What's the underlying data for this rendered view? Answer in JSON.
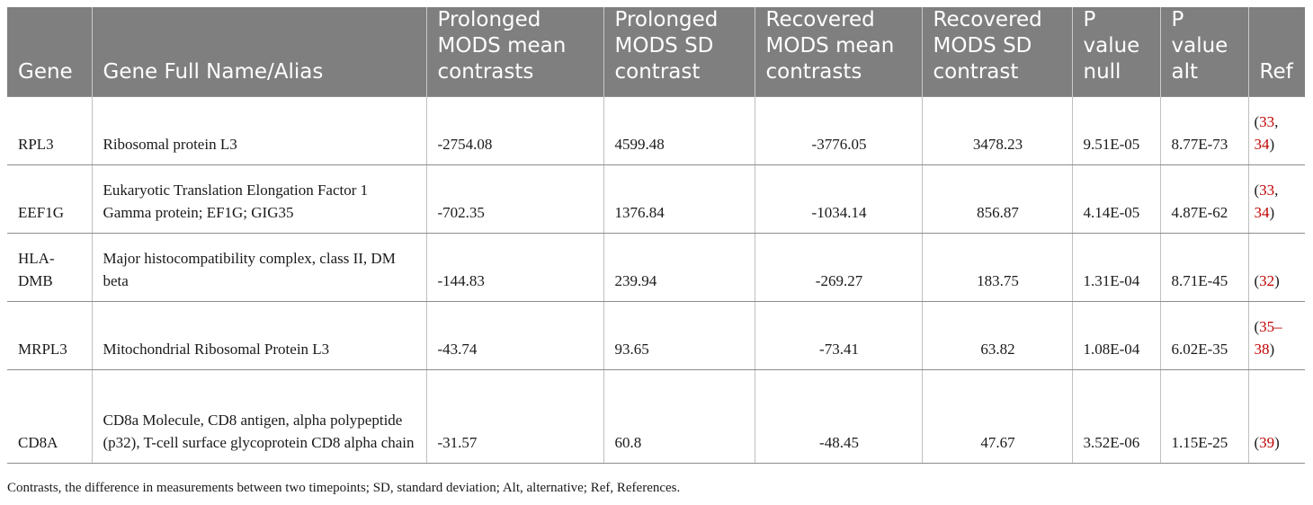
{
  "table": {
    "headers": [
      "Gene",
      "Gene Full Name/Alias",
      "Prolonged MODS mean contrasts",
      "Prolonged MODS SD contrast",
      "Recovered MODS mean contrasts",
      "Recovered MODS SD contrast",
      "P value null",
      "P value alt",
      "Ref"
    ],
    "rows": [
      {
        "gene": "RPL3",
        "name": "Ribosomal protein L3",
        "prolonged_mean": "-2754.08",
        "prolonged_sd": "4599.48",
        "recovered_mean": "-3776.05",
        "recovered_sd": "3478.23",
        "p_null": "9.51E-05",
        "p_alt": "8.77E-73",
        "ref_open": "(",
        "ref_a": "33",
        "ref_sep": ", ",
        "ref_b": "34",
        "ref_close": ")"
      },
      {
        "gene": "EEF1G",
        "name": "Eukaryotic Translation Elongation Factor 1 Gamma protein; EF1G; GIG35",
        "prolonged_mean": "-702.35",
        "prolonged_sd": "1376.84",
        "recovered_mean": "-1034.14",
        "recovered_sd": "856.87",
        "p_null": "4.14E-05",
        "p_alt": "4.87E-62",
        "ref_open": "(",
        "ref_a": "33",
        "ref_sep": ", ",
        "ref_b": "34",
        "ref_close": ")"
      },
      {
        "gene": "HLA-DMB",
        "name": "Major histocompatibility complex, class II, DM beta",
        "prolonged_mean": "-144.83",
        "prolonged_sd": "239.94",
        "recovered_mean": "-269.27",
        "recovered_sd": "183.75",
        "p_null": "1.31E-04",
        "p_alt": "8.71E-45",
        "ref_open": "(",
        "ref_a": "32",
        "ref_sep": "",
        "ref_b": "",
        "ref_close": ")"
      },
      {
        "gene": "MRPL3",
        "name": "Mitochondrial Ribosomal Protein L3",
        "prolonged_mean": "-43.74",
        "prolonged_sd": "93.65",
        "recovered_mean": "-73.41",
        "recovered_sd": "63.82",
        "p_null": "1.08E-04",
        "p_alt": "6.02E-35",
        "ref_open": "(",
        "ref_a": "35–38",
        "ref_sep": "",
        "ref_b": "",
        "ref_close": ")"
      },
      {
        "gene": "CD8A",
        "name": "CD8a Molecule, CD8 antigen, alpha polypeptide (p32), T-cell surface glycoprotein CD8 alpha chain",
        "prolonged_mean": "-31.57",
        "prolonged_sd": "60.8",
        "recovered_mean": "-48.45",
        "recovered_sd": "47.67",
        "p_null": "3.52E-06",
        "p_alt": "1.15E-25",
        "ref_open": "(",
        "ref_a": "39",
        "ref_sep": "",
        "ref_b": "",
        "ref_close": ")"
      }
    ]
  },
  "footnote": "Contrasts, the difference in measurements between two timepoints; SD, standard deviation; Alt, alternative; Ref, References.",
  "colors": {
    "header_bg": "#7f7f7f",
    "header_text": "#ffffff",
    "ref_link": "#c00000"
  }
}
